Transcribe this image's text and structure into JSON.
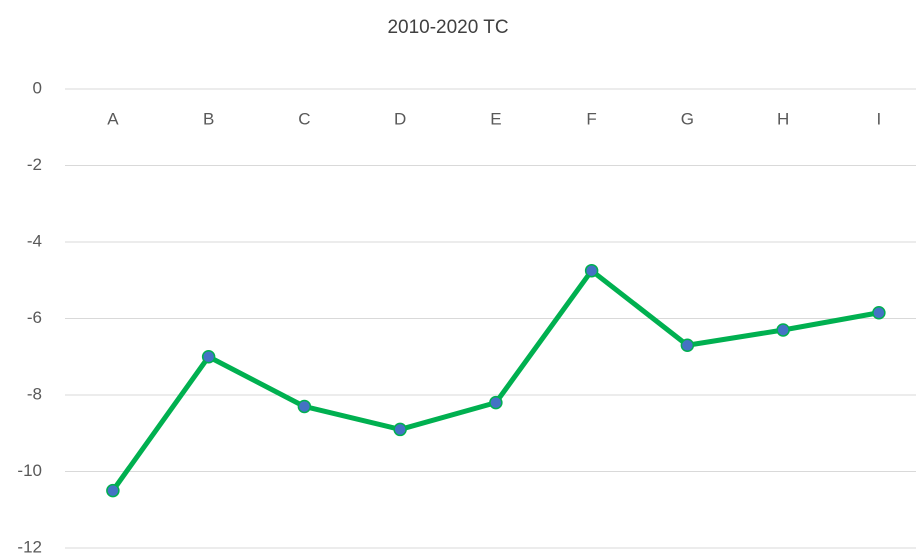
{
  "chart_data": {
    "type": "line",
    "title": "2010-2020 TC",
    "categories": [
      "A",
      "B",
      "C",
      "D",
      "E",
      "F",
      "G",
      "H",
      "I"
    ],
    "series": [
      {
        "name": "TC",
        "color": "#00b050",
        "marker_color": "#4472c4",
        "values": [
          -10.5,
          -7.0,
          -8.3,
          -8.9,
          -8.2,
          -4.75,
          -6.7,
          -6.3,
          -5.85
        ]
      }
    ],
    "ylim": [
      -12,
      0
    ],
    "yticks": [
      -12,
      -10,
      -8,
      -6,
      -4,
      -2,
      0
    ],
    "grid": true
  }
}
